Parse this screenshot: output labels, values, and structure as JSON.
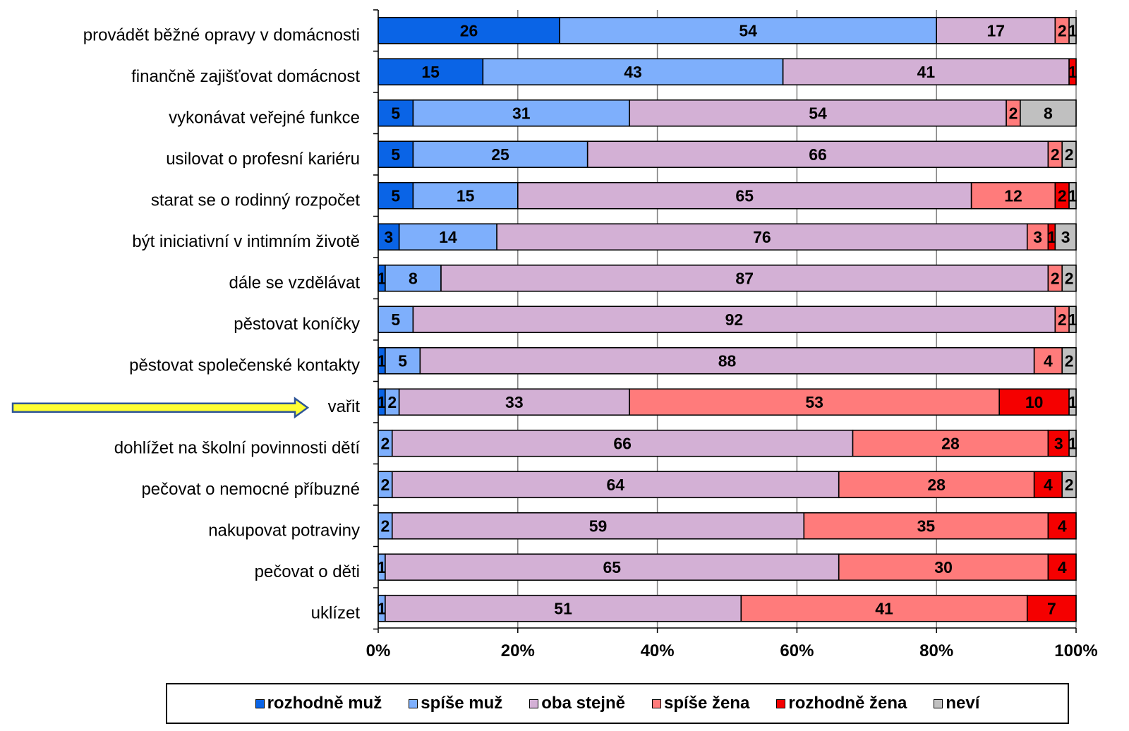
{
  "chart_data": {
    "type": "bar",
    "orientation": "horizontal",
    "stacked": "percent",
    "categories": [
      "provádět běžné opravy v domácnosti",
      "finančně zajišťovat domácnost",
      "vykonávat veřejné funkce",
      "usilovat o profesní kariéru",
      "starat se o rodinný rozpočet",
      "být iniciativní v intimním životě",
      "dále se vzdělávat",
      "pěstovat koníčky",
      "pěstovat společenské kontakty",
      "vařit",
      "dohlížet na školní povinnosti dětí",
      "pečovat o nemocné příbuzné",
      "nakupovat potraviny",
      "pečovat o děti",
      "uklízet"
    ],
    "series": [
      {
        "name": "rozhodně muž",
        "color": "#0a64e6",
        "values": [
          26,
          15,
          5,
          5,
          5,
          3,
          1,
          0,
          1,
          1,
          0,
          0,
          0,
          0,
          0
        ]
      },
      {
        "name": "spíše muž",
        "color": "#7eaffc",
        "values": [
          54,
          43,
          31,
          25,
          15,
          14,
          8,
          5,
          5,
          2,
          2,
          2,
          2,
          1,
          1
        ]
      },
      {
        "name": "oba stejně",
        "color": "#d3b0d5",
        "values": [
          17,
          41,
          54,
          66,
          65,
          76,
          87,
          92,
          88,
          33,
          66,
          64,
          59,
          65,
          51
        ]
      },
      {
        "name": "spíše žena",
        "color": "#ff7b7b",
        "values": [
          2,
          0,
          2,
          2,
          12,
          3,
          2,
          2,
          4,
          53,
          28,
          28,
          35,
          30,
          41
        ]
      },
      {
        "name": "rozhodně žena",
        "color": "#f50000",
        "values": [
          0,
          1,
          0,
          0,
          2,
          1,
          0,
          0,
          0,
          10,
          3,
          4,
          4,
          4,
          7
        ]
      },
      {
        "name": "neví",
        "color": "#c0c0c0",
        "values": [
          1,
          0,
          8,
          2,
          1,
          3,
          2,
          1,
          2,
          1,
          1,
          2,
          0,
          0,
          0
        ]
      }
    ],
    "x_ticks": [
      "0%",
      "20%",
      "40%",
      "60%",
      "80%",
      "100%"
    ],
    "xlim": [
      0,
      100
    ],
    "grid": "vertical",
    "legend_position": "bottom",
    "annotation": {
      "type": "arrow",
      "color": "#ffff33",
      "target_category": "vařit"
    }
  }
}
